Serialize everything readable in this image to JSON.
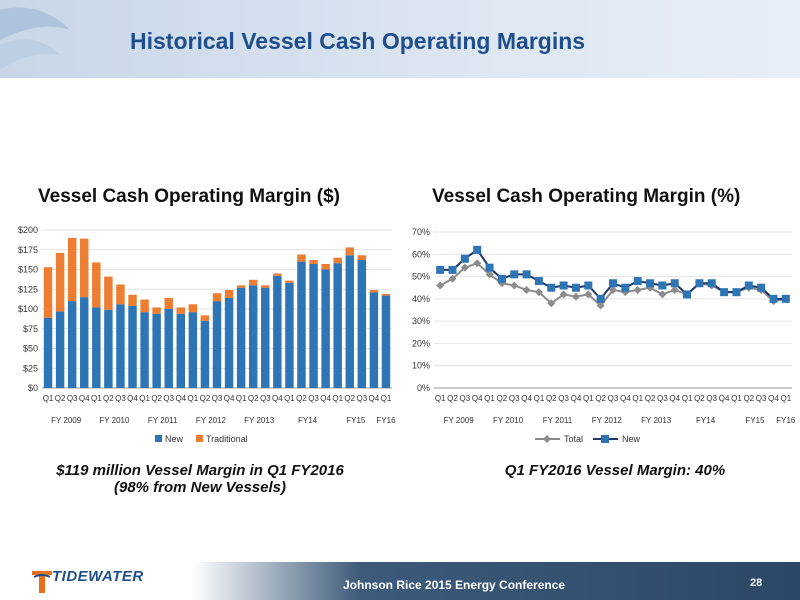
{
  "header": {
    "title": "Historical Vessel Cash Operating Margins"
  },
  "charts": {
    "left_title": "Vessel Cash Operating Margin ($)",
    "right_title": "Vessel Cash Operating Margin (%)"
  },
  "captions": {
    "left": "$119 million Vessel Margin in Q1 FY2016 (98% from New Vessels)",
    "right": "Q1 FY2016 Vessel Margin: 40%"
  },
  "footer": {
    "conference": "Johnson Rice 2015 Energy Conference",
    "page_number": "28",
    "logo_text": "TIDEWATER"
  },
  "colors": {
    "new": "#2e75b6",
    "traditional": "#ed7d31",
    "total": "#8c8c8c",
    "title": "#1f4e8c"
  },
  "chart_data": [
    {
      "type": "bar",
      "stacked": true,
      "title": "Vessel Cash Operating Margin ($)",
      "quarters": [
        "Q1",
        "Q2",
        "Q3",
        "Q4",
        "Q1",
        "Q2",
        "Q3",
        "Q4",
        "Q1",
        "Q2",
        "Q3",
        "Q4",
        "Q1",
        "Q2",
        "Q3",
        "Q4",
        "Q1",
        "Q2",
        "Q3",
        "Q4",
        "Q1",
        "Q2",
        "Q3",
        "Q4",
        "Q1",
        "Q2",
        "Q3",
        "Q4",
        "Q1"
      ],
      "fiscal_years": [
        {
          "label": "FY 2009",
          "start": 0,
          "end": 3
        },
        {
          "label": "FY 2010",
          "start": 4,
          "end": 7
        },
        {
          "label": "FY 2011",
          "start": 8,
          "end": 11
        },
        {
          "label": "FY 2012",
          "start": 12,
          "end": 15
        },
        {
          "label": "FY 2013",
          "start": 16,
          "end": 19
        },
        {
          "label": "FY14",
          "start": 20,
          "end": 23
        },
        {
          "label": "FY15",
          "start": 24,
          "end": 27
        },
        {
          "label": "FY16",
          "start": 28,
          "end": 28
        }
      ],
      "series": [
        {
          "name": "New",
          "values": [
            89,
            97,
            110,
            115,
            102,
            99,
            106,
            104,
            96,
            94,
            100,
            94,
            96,
            85,
            110,
            114,
            127,
            130,
            127,
            142,
            133,
            160,
            157,
            150,
            158,
            168,
            162,
            121,
            117
          ]
        },
        {
          "name": "Traditional",
          "values": [
            64,
            74,
            80,
            74,
            57,
            42,
            25,
            14,
            16,
            8,
            14,
            8,
            10,
            7,
            10,
            10,
            3,
            7,
            3,
            3,
            3,
            9,
            5,
            7,
            7,
            10,
            6,
            3,
            2
          ]
        }
      ],
      "yticks": [
        "$0",
        "$25",
        "$50",
        "$75",
        "$100",
        "$125",
        "$150",
        "$175",
        "$200"
      ],
      "ylim": [
        0,
        200
      ],
      "legend": "bottom"
    },
    {
      "type": "line",
      "title": "Vessel Cash Operating Margin (%)",
      "quarters": [
        "Q1",
        "Q2",
        "Q3",
        "Q4",
        "Q1",
        "Q2",
        "Q3",
        "Q4",
        "Q1",
        "Q2",
        "Q3",
        "Q4",
        "Q1",
        "Q2",
        "Q3",
        "Q4",
        "Q1",
        "Q2",
        "Q3",
        "Q4",
        "Q1",
        "Q2",
        "Q3",
        "Q4",
        "Q1",
        "Q2",
        "Q3",
        "Q4",
        "Q1"
      ],
      "fiscal_years": [
        {
          "label": "FY 2009",
          "start": 0,
          "end": 3
        },
        {
          "label": "FY 2010",
          "start": 4,
          "end": 7
        },
        {
          "label": "FY 2011",
          "start": 8,
          "end": 11
        },
        {
          "label": "FY 2012",
          "start": 12,
          "end": 15
        },
        {
          "label": "FY 2013",
          "start": 16,
          "end": 19
        },
        {
          "label": "FY14",
          "start": 20,
          "end": 23
        },
        {
          "label": "FY15",
          "start": 24,
          "end": 27
        },
        {
          "label": "FY16",
          "start": 28,
          "end": 28
        }
      ],
      "series": [
        {
          "name": "Total",
          "values": [
            46,
            49,
            54,
            56,
            51,
            47,
            46,
            44,
            43,
            38,
            42,
            41,
            42,
            37,
            44,
            43,
            44,
            45,
            42,
            44,
            42,
            47,
            46,
            43,
            43,
            45,
            44,
            39,
            40
          ]
        },
        {
          "name": "New",
          "values": [
            53,
            53,
            58,
            62,
            54,
            49,
            51,
            51,
            48,
            45,
            46,
            45,
            46,
            40,
            47,
            45,
            48,
            47,
            46,
            47,
            42,
            47,
            47,
            43,
            43,
            46,
            45,
            40,
            40
          ]
        }
      ],
      "yticks": [
        "0%",
        "10%",
        "20%",
        "30%",
        "40%",
        "50%",
        "60%",
        "70%"
      ],
      "ylim": [
        0,
        70
      ],
      "legend": "bottom"
    }
  ]
}
